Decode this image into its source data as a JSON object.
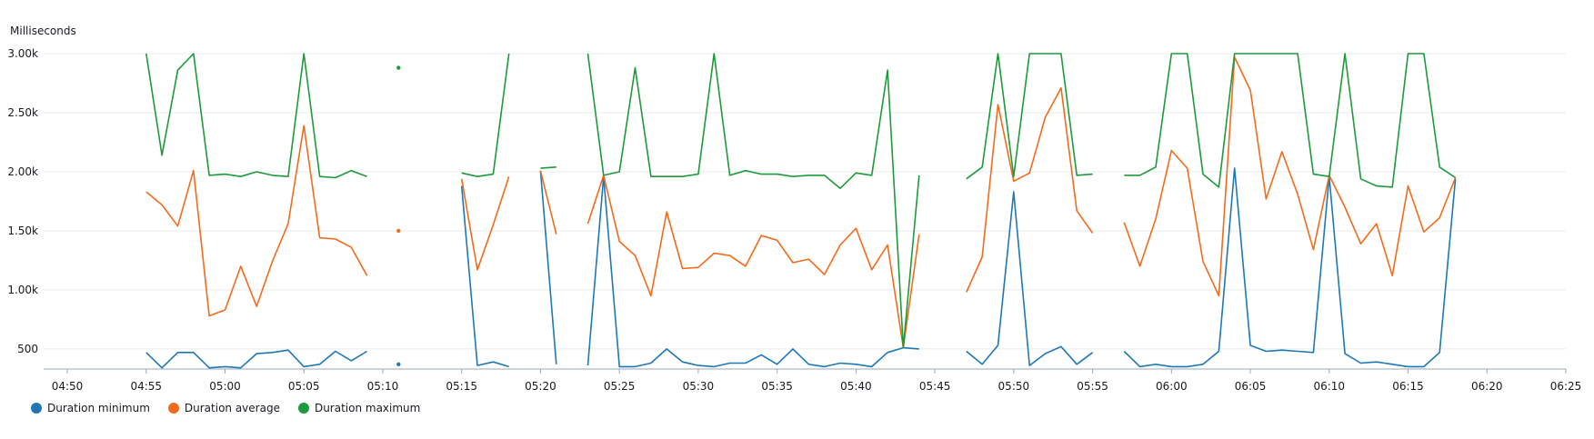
{
  "chart_data": {
    "type": "line",
    "ylabel": "Milliseconds",
    "ylim": [
      330,
      3000
    ],
    "yticks": [
      {
        "value": 3000,
        "label": "3.00k"
      },
      {
        "value": 2500,
        "label": "2.50k"
      },
      {
        "value": 2000,
        "label": "2.00k"
      },
      {
        "value": 1500,
        "label": "1.50k"
      },
      {
        "value": 1000,
        "label": "1.00k"
      },
      {
        "value": 500,
        "label": "500"
      }
    ],
    "xlim": [
      "04:48:30",
      "06:25"
    ],
    "xticks": [
      "04:50",
      "04:55",
      "05:00",
      "05:05",
      "05:10",
      "05:15",
      "05:20",
      "05:25",
      "05:30",
      "05:35",
      "05:40",
      "05:45",
      "05:50",
      "05:55",
      "06:00",
      "06:05",
      "06:10",
      "06:15",
      "06:20",
      "06:25"
    ],
    "grid": true,
    "legend_position": "bottom-left",
    "series": [
      {
        "name": "Duration minimum",
        "color": "#1f77b4",
        "segments": [
          [
            [
              "04:55",
              470
            ],
            [
              "04:56",
              340
            ],
            [
              "04:57",
              470
            ],
            [
              "04:58",
              470
            ],
            [
              "04:59",
              340
            ],
            [
              "05:00",
              350
            ],
            [
              "05:01",
              340
            ],
            [
              "05:02",
              460
            ],
            [
              "05:03",
              470
            ],
            [
              "05:04",
              490
            ],
            [
              "05:05",
              350
            ],
            [
              "05:06",
              370
            ],
            [
              "05:07",
              480
            ],
            [
              "05:08",
              400
            ],
            [
              "05:09",
              480
            ]
          ],
          [
            [
              "05:11",
              370
            ]
          ],
          [
            [
              "05:15",
              1880
            ],
            [
              "05:16",
              360
            ],
            [
              "05:17",
              390
            ],
            [
              "05:18",
              350
            ]
          ],
          [
            [
              "05:20",
              2010
            ],
            [
              "05:21",
              370
            ]
          ],
          [
            [
              "05:23",
              360
            ],
            [
              "05:24",
              1960
            ],
            [
              "05:25",
              350
            ],
            [
              "05:26",
              350
            ],
            [
              "05:27",
              380
            ],
            [
              "05:28",
              500
            ],
            [
              "05:29",
              390
            ],
            [
              "05:30",
              360
            ],
            [
              "05:31",
              350
            ],
            [
              "05:32",
              380
            ],
            [
              "05:33",
              380
            ],
            [
              "05:34",
              450
            ],
            [
              "05:35",
              370
            ],
            [
              "05:36",
              500
            ],
            [
              "05:37",
              370
            ],
            [
              "05:38",
              350
            ],
            [
              "05:39",
              380
            ],
            [
              "05:40",
              370
            ],
            [
              "05:41",
              350
            ],
            [
              "05:42",
              470
            ],
            [
              "05:43",
              510
            ],
            [
              "05:44",
              500
            ]
          ],
          [
            [
              "05:47",
              480
            ],
            [
              "05:48",
              370
            ],
            [
              "05:49",
              530
            ],
            [
              "05:50",
              1830
            ],
            [
              "05:51",
              360
            ],
            [
              "05:52",
              460
            ],
            [
              "05:53",
              520
            ],
            [
              "05:54",
              370
            ],
            [
              "05:55",
              470
            ]
          ],
          [
            [
              "05:57",
              480
            ],
            [
              "05:58",
              350
            ],
            [
              "05:59",
              370
            ],
            [
              "06:00",
              350
            ],
            [
              "06:01",
              350
            ],
            [
              "06:02",
              370
            ],
            [
              "06:03",
              480
            ],
            [
              "06:04",
              2030
            ],
            [
              "06:05",
              530
            ],
            [
              "06:06",
              480
            ],
            [
              "06:07",
              490
            ],
            [
              "06:08",
              480
            ],
            [
              "06:09",
              470
            ],
            [
              "06:10",
              1960
            ],
            [
              "06:11",
              460
            ],
            [
              "06:12",
              380
            ],
            [
              "06:13",
              390
            ],
            [
              "06:14",
              370
            ],
            [
              "06:15",
              350
            ],
            [
              "06:16",
              350
            ],
            [
              "06:17",
              470
            ],
            [
              "06:18",
              1940
            ]
          ]
        ]
      },
      {
        "name": "Duration average",
        "color": "#f26b1d",
        "segments": [
          [
            [
              "04:55",
              1830
            ],
            [
              "04:56",
              1720
            ],
            [
              "04:57",
              1540
            ],
            [
              "04:58",
              2010
            ],
            [
              "04:59",
              780
            ],
            [
              "05:00",
              830
            ],
            [
              "05:01",
              1200
            ],
            [
              "05:02",
              860
            ],
            [
              "05:03",
              1240
            ],
            [
              "05:04",
              1560
            ],
            [
              "05:05",
              2390
            ],
            [
              "05:06",
              1440
            ],
            [
              "05:07",
              1430
            ],
            [
              "05:08",
              1360
            ],
            [
              "05:09",
              1120
            ]
          ],
          [
            [
              "05:11",
              1500
            ]
          ],
          [
            [
              "05:15",
              1940
            ],
            [
              "05:16",
              1170
            ],
            [
              "05:17",
              1550
            ],
            [
              "05:18",
              1960
            ]
          ],
          [
            [
              "05:20",
              2010
            ],
            [
              "05:21",
              1470
            ]
          ],
          [
            [
              "05:23",
              1560
            ],
            [
              "05:24",
              1970
            ],
            [
              "05:25",
              1410
            ],
            [
              "05:26",
              1290
            ],
            [
              "05:27",
              950
            ],
            [
              "05:28",
              1660
            ],
            [
              "05:29",
              1180
            ],
            [
              "05:30",
              1190
            ],
            [
              "05:31",
              1310
            ],
            [
              "05:32",
              1290
            ],
            [
              "05:33",
              1200
            ],
            [
              "05:34",
              1460
            ],
            [
              "05:35",
              1420
            ],
            [
              "05:36",
              1230
            ],
            [
              "05:37",
              1260
            ],
            [
              "05:38",
              1130
            ],
            [
              "05:39",
              1380
            ],
            [
              "05:40",
              1520
            ],
            [
              "05:41",
              1170
            ],
            [
              "05:42",
              1380
            ],
            [
              "05:43",
              510
            ],
            [
              "05:44",
              1470
            ]
          ],
          [
            [
              "05:47",
              980
            ],
            [
              "05:48",
              1280
            ],
            [
              "05:49",
              2570
            ],
            [
              "05:50",
              1920
            ],
            [
              "05:51",
              1990
            ],
            [
              "05:52",
              2460
            ],
            [
              "05:53",
              2710
            ],
            [
              "05:54",
              1670
            ],
            [
              "05:55",
              1480
            ]
          ],
          [
            [
              "05:57",
              1570
            ],
            [
              "05:58",
              1200
            ],
            [
              "05:59",
              1600
            ],
            [
              "06:00",
              2180
            ],
            [
              "06:01",
              2030
            ],
            [
              "06:02",
              1240
            ],
            [
              "06:03",
              950
            ],
            [
              "06:04",
              2970
            ],
            [
              "06:05",
              2690
            ],
            [
              "06:06",
              1770
            ],
            [
              "06:07",
              2170
            ],
            [
              "06:08",
              1810
            ],
            [
              "06:09",
              1340
            ],
            [
              "06:10",
              1970
            ],
            [
              "06:11",
              1700
            ],
            [
              "06:12",
              1390
            ],
            [
              "06:13",
              1560
            ],
            [
              "06:14",
              1120
            ],
            [
              "06:15",
              1880
            ],
            [
              "06:16",
              1490
            ],
            [
              "06:17",
              1610
            ],
            [
              "06:18",
              1950
            ]
          ]
        ]
      },
      {
        "name": "Duration maximum",
        "color": "#1d9a3a",
        "segments": [
          [
            [
              "04:55",
              3000
            ],
            [
              "04:56",
              2140
            ],
            [
              "04:57",
              2860
            ],
            [
              "04:58",
              3000
            ],
            [
              "04:59",
              1970
            ],
            [
              "05:00",
              1980
            ],
            [
              "05:01",
              1960
            ],
            [
              "05:02",
              2000
            ],
            [
              "05:03",
              1970
            ],
            [
              "05:04",
              1960
            ],
            [
              "05:05",
              3000
            ],
            [
              "05:06",
              1960
            ],
            [
              "05:07",
              1950
            ],
            [
              "05:08",
              2010
            ],
            [
              "05:09",
              1960
            ]
          ],
          [
            [
              "05:11",
              2880
            ]
          ],
          [
            [
              "05:15",
              1990
            ],
            [
              "05:16",
              1960
            ],
            [
              "05:17",
              1980
            ],
            [
              "05:18",
              3000
            ]
          ],
          [
            [
              "05:20",
              2030
            ],
            [
              "05:21",
              2040
            ]
          ],
          [
            [
              "05:23",
              3000
            ],
            [
              "05:24",
              1970
            ],
            [
              "05:25",
              2000
            ],
            [
              "05:26",
              2880
            ],
            [
              "05:27",
              1960
            ],
            [
              "05:28",
              1960
            ],
            [
              "05:29",
              1960
            ],
            [
              "05:30",
              1980
            ],
            [
              "05:31",
              3000
            ],
            [
              "05:32",
              1970
            ],
            [
              "05:33",
              2010
            ],
            [
              "05:34",
              1980
            ],
            [
              "05:35",
              1980
            ],
            [
              "05:36",
              1960
            ],
            [
              "05:37",
              1970
            ],
            [
              "05:38",
              1970
            ],
            [
              "05:39",
              1860
            ],
            [
              "05:40",
              1990
            ],
            [
              "05:41",
              1970
            ],
            [
              "05:42",
              2860
            ],
            [
              "05:43",
              510
            ],
            [
              "05:44",
              1970
            ]
          ],
          [
            [
              "05:47",
              1940
            ],
            [
              "05:48",
              2040
            ],
            [
              "05:49",
              3000
            ],
            [
              "05:50",
              1960
            ],
            [
              "05:51",
              3000
            ],
            [
              "05:52",
              3000
            ],
            [
              "05:53",
              3000
            ],
            [
              "05:54",
              1970
            ],
            [
              "05:55",
              1980
            ]
          ],
          [
            [
              "05:57",
              1970
            ],
            [
              "05:58",
              1970
            ],
            [
              "05:59",
              2040
            ],
            [
              "06:00",
              3000
            ],
            [
              "06:01",
              3000
            ],
            [
              "06:02",
              1980
            ],
            [
              "06:03",
              1870
            ],
            [
              "06:04",
              3000
            ],
            [
              "06:05",
              3000
            ],
            [
              "06:06",
              3000
            ],
            [
              "06:07",
              3000
            ],
            [
              "06:08",
              3000
            ],
            [
              "06:09",
              1980
            ],
            [
              "06:10",
              1960
            ],
            [
              "06:11",
              3000
            ],
            [
              "06:12",
              1940
            ],
            [
              "06:13",
              1880
            ],
            [
              "06:14",
              1870
            ],
            [
              "06:15",
              3000
            ],
            [
              "06:16",
              3000
            ],
            [
              "06:17",
              2040
            ],
            [
              "06:18",
              1950
            ]
          ]
        ]
      }
    ]
  }
}
